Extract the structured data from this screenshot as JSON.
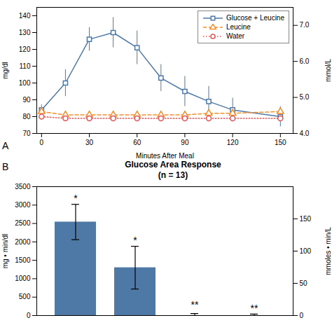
{
  "chart_data": [
    {
      "type": "line",
      "panel_label": "A",
      "x": [
        0,
        15,
        30,
        45,
        60,
        75,
        90,
        105,
        120,
        150
      ],
      "xlim": [
        -3,
        158
      ],
      "xticks": [
        0,
        30,
        60,
        90,
        120,
        150
      ],
      "xlabel": "Minutes After Meal",
      "ylabel": "mg/dl",
      "ylim": [
        70,
        145
      ],
      "yticks": [
        70,
        80,
        90,
        100,
        110,
        120,
        130,
        140
      ],
      "y2label": "mmol/L",
      "y2lim": [
        4.0,
        7.5
      ],
      "y2ticks": [
        {
          "value": 4.0,
          "label": "4.0"
        },
        {
          "value": 5.0,
          "label": "5.0"
        },
        {
          "value": 6.0,
          "label": "6.0"
        },
        {
          "value": 7.0,
          "label": "7.0"
        }
      ],
      "legend": "upper right",
      "series": [
        {
          "name": "Glucose + Leucine",
          "marker": "square",
          "line_style": "solid",
          "values": [
            84,
            100,
            126,
            130,
            121,
            103,
            95,
            89,
            84,
            80
          ],
          "errors": [
            3,
            8,
            7,
            9,
            10,
            8,
            9,
            9,
            7,
            6
          ]
        },
        {
          "name": "Leucine",
          "marker": "triangle",
          "line_style": "dashed",
          "values": [
            83,
            81,
            81,
            81,
            81,
            81,
            81,
            82,
            82,
            83
          ],
          "errors": [
            2,
            2,
            2,
            2,
            2,
            2,
            2,
            2,
            2,
            2
          ]
        },
        {
          "name": "Water",
          "marker": "circle",
          "line_style": "dotted",
          "values": [
            80,
            79,
            79,
            79,
            79,
            79,
            79,
            79,
            79,
            79
          ],
          "errors": [
            1,
            1,
            1,
            1,
            1,
            1,
            1,
            1,
            1,
            1
          ]
        }
      ]
    },
    {
      "type": "bar",
      "panel_label": "B",
      "title": "Glucose Area Response",
      "subtitle": "(n = 13)",
      "categories": [
        null,
        null,
        null,
        null
      ],
      "values": [
        2540,
        1300,
        0,
        0
      ],
      "errors_minus": [
        480,
        580,
        0,
        0
      ],
      "errors_plus": [
        480,
        580,
        55,
        40
      ],
      "color": "#4e79a7",
      "ylabel": "mg • min/dl",
      "ylim": [
        0,
        3500
      ],
      "yticks": [
        0,
        500,
        1000,
        1500,
        2000,
        2500,
        3000,
        3500
      ],
      "y2label": "mmoles • min/L",
      "y2lim": [
        0,
        200
      ],
      "y2ticks": [
        0,
        50,
        100,
        150
      ],
      "annotations": [
        "*",
        "*",
        "**",
        "**"
      ],
      "annotation_y": [
        3100,
        1950,
        200,
        100
      ]
    }
  ]
}
